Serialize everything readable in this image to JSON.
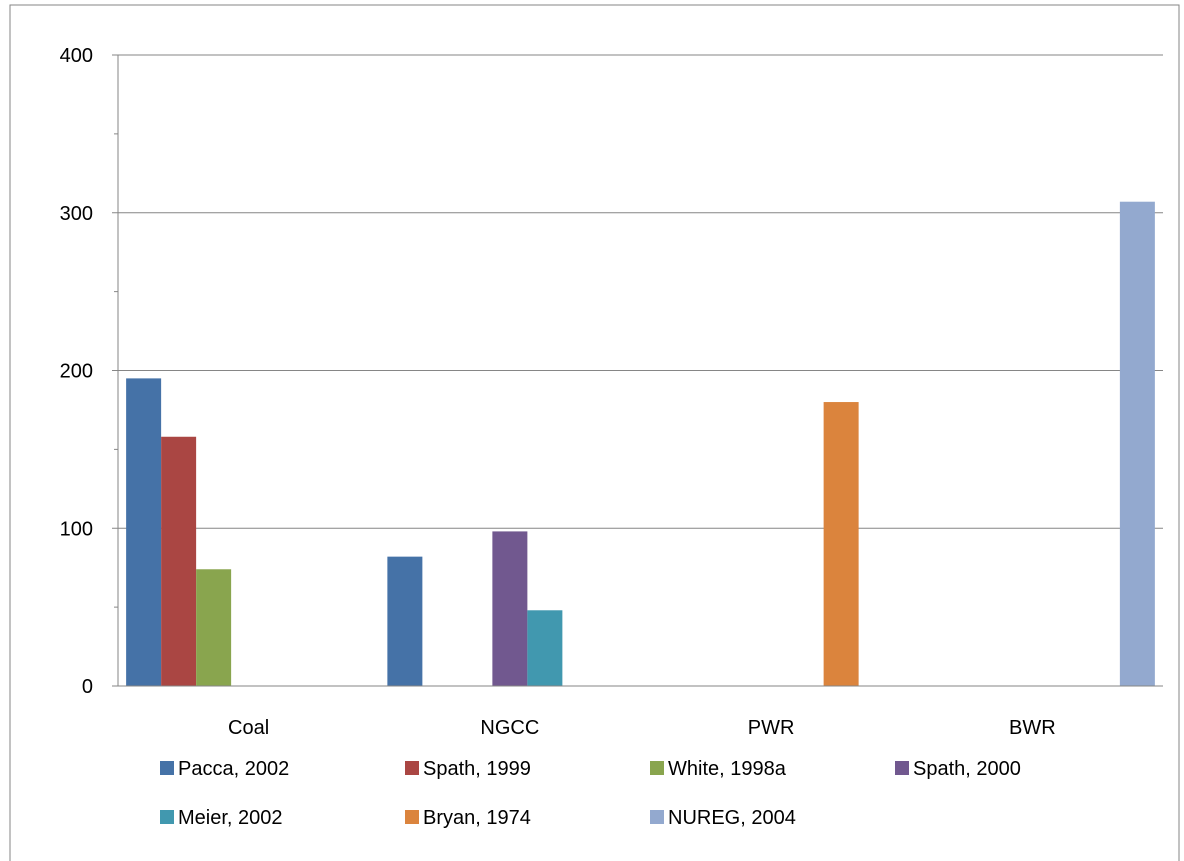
{
  "chart_data": {
    "type": "bar",
    "categories": [
      "Coal",
      "NGCC",
      "PWR",
      "BWR"
    ],
    "yticks": [
      "0",
      "100",
      "200",
      "300",
      "400"
    ],
    "ylim": [
      0,
      400
    ],
    "grid": true,
    "legend_position": "bottom",
    "series": [
      {
        "name": "Pacca, 2002",
        "color": "#4572A7",
        "values": [
          195,
          82,
          null,
          null
        ]
      },
      {
        "name": "Spath, 1999",
        "color": "#AA4643",
        "values": [
          158,
          null,
          null,
          null
        ]
      },
      {
        "name": "White, 1998a",
        "color": "#89A54E",
        "values": [
          74,
          null,
          null,
          null
        ]
      },
      {
        "name": "Spath, 2000",
        "color": "#71588F",
        "values": [
          null,
          98,
          null,
          null
        ]
      },
      {
        "name": "Meier, 2002",
        "color": "#4198AF",
        "values": [
          null,
          48,
          null,
          null
        ]
      },
      {
        "name": "Bryan, 1974",
        "color": "#DB843D",
        "values": [
          null,
          null,
          180,
          null
        ]
      },
      {
        "name": "NUREG, 2004",
        "color": "#93A9CF",
        "values": [
          null,
          null,
          null,
          307
        ]
      }
    ]
  }
}
